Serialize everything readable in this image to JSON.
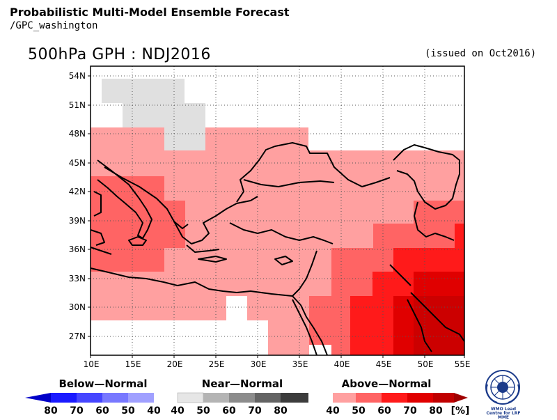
{
  "header": {
    "title": "Probabilistic Multi-Model Ensemble Forecast",
    "subtitle": "/GPC_washington",
    "map_title": "500hPa GPH : NDJ2016",
    "issued": "(issued on Oct2016)"
  },
  "map": {
    "lat_labels": [
      "54N",
      "51N",
      "48N",
      "45N",
      "42N",
      "39N",
      "36N",
      "33N",
      "30N",
      "27N"
    ],
    "lon_labels": [
      "10E",
      "15E",
      "20E",
      "25E",
      "30E",
      "35E",
      "40E",
      "45E",
      "50E",
      "55E"
    ],
    "categories": {
      "near_normal": [
        "#e0e0e0"
      ],
      "above_normal": [
        "#ffa0a0",
        "#ff6464",
        "#ff1a1a",
        "#e00000",
        "#c00000"
      ]
    }
  },
  "legend": {
    "below": {
      "label": "Below—Normal",
      "ticks": [
        "80",
        "70",
        "60",
        "50",
        "40"
      ],
      "colors": [
        "#0000c8",
        "#1a1aff",
        "#4646ff",
        "#7878ff",
        "#a0a0ff"
      ]
    },
    "near": {
      "label": "Near—Normal",
      "ticks": [
        "40",
        "50",
        "60",
        "70",
        "80"
      ],
      "colors": [
        "#e6e6e6",
        "#b4b4b4",
        "#8c8c8c",
        "#646464",
        "#3c3c3c"
      ]
    },
    "above": {
      "label": "Above—Normal",
      "ticks": [
        "40",
        "50",
        "60",
        "70",
        "80"
      ],
      "unit": "[%]",
      "colors": [
        "#ffa0a0",
        "#ff6464",
        "#ff1a1a",
        "#e00000",
        "#c00000"
      ]
    }
  },
  "logo": {
    "text": "WMO Lead Centre for LRF MME"
  }
}
